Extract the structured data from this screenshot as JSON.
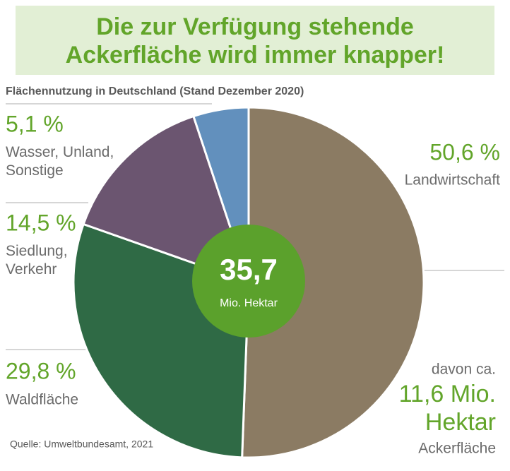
{
  "chart_data": {
    "type": "pie",
    "title": "Die zur Verfügung stehende\nAckerfläche wird immer knapper!",
    "subtitle": "Flächennutzung in Deutschland (Stand Dezember 2020)",
    "categories": [
      "Landwirtschaft",
      "Waldfläche",
      "Siedlung,\nVerkehr",
      "Wasser, Unland,\nSonstige"
    ],
    "values": [
      50.6,
      29.8,
      14.5,
      5.1
    ],
    "value_labels": [
      "50,6 %",
      "29,8 %",
      "14,5 %",
      "5,1 %"
    ],
    "colors": [
      "#8b7b63",
      "#2f6a45",
      "#6b5570",
      "#6290bd"
    ],
    "center_value": "35,7",
    "center_unit": "Mio. Hektar",
    "annotation": {
      "intro": "davon ca.",
      "value": "11,6 Mio.\nHektar",
      "label": "Ackerfläche"
    },
    "source": "Quelle: Umweltbundesamt, 2021"
  }
}
